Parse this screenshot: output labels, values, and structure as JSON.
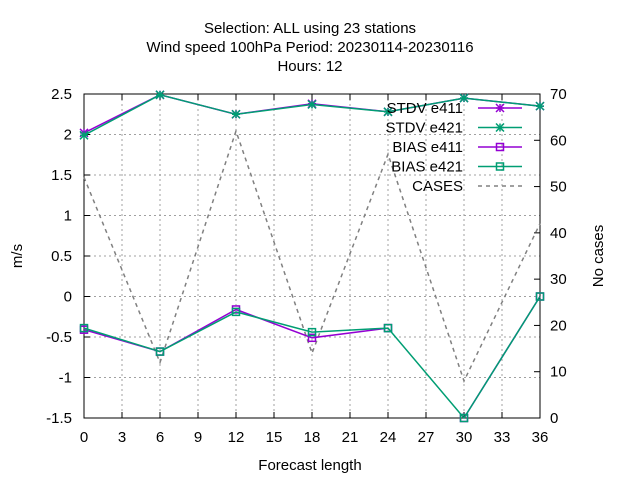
{
  "chart_data": {
    "type": "line",
    "title_lines": [
      "Selection: ALL using    23 stations",
      "Wind speed 100hPa   Period: 20230114-20230116",
      "Hours:  12"
    ],
    "xlabel": "Forecast length",
    "ylabel": "m/s",
    "y2label": "No cases",
    "xlim": [
      0,
      36
    ],
    "ylim": [
      -1.5,
      2.5
    ],
    "y2lim": [
      0,
      70
    ],
    "x_ticks": [
      "0",
      "3",
      "6",
      "9",
      "12",
      "15",
      "18",
      "21",
      "24",
      "27",
      "30",
      "33",
      "36"
    ],
    "y_ticks": [
      "2.5",
      "2",
      "1.5",
      "1",
      "0.5",
      "0",
      "-0.5",
      "-1",
      "-1.5"
    ],
    "y2_ticks": [
      "70",
      "60",
      "50",
      "40",
      "30",
      "20",
      "10",
      "0"
    ],
    "grid": true,
    "legend_position": "top-right",
    "series": [
      {
        "name": "STDV e411",
        "axis": "y1",
        "color": "#9400d3",
        "marker": "star",
        "dash": false,
        "points": [
          [
            0,
            2.02
          ],
          [
            6,
            2.49
          ],
          [
            12,
            2.25
          ],
          [
            18,
            2.38
          ],
          [
            24,
            2.28
          ],
          [
            30,
            2.45
          ],
          [
            36,
            2.35
          ]
        ]
      },
      {
        "name": "STDV e421",
        "axis": "y1",
        "color": "#009e73",
        "marker": "star",
        "dash": false,
        "points": [
          [
            0,
            1.99
          ],
          [
            6,
            2.49
          ],
          [
            12,
            2.25
          ],
          [
            18,
            2.37
          ],
          [
            24,
            2.28
          ],
          [
            30,
            2.45
          ],
          [
            36,
            2.35
          ]
        ]
      },
      {
        "name": "BIAS e411",
        "axis": "y1",
        "color": "#9400d3",
        "marker": "square",
        "dash": false,
        "points": [
          [
            0,
            -0.41
          ],
          [
            6,
            -0.68
          ],
          [
            12,
            -0.16
          ],
          [
            18,
            -0.51
          ],
          [
            24,
            -0.39
          ]
        ],
        "points2": [
          [
            30,
            -1.5
          ],
          [
            36,
            0.0
          ]
        ]
      },
      {
        "name": "BIAS e421",
        "axis": "y1",
        "color": "#009e73",
        "marker": "square",
        "dash": false,
        "points": [
          [
            0,
            -0.39
          ],
          [
            6,
            -0.68
          ],
          [
            12,
            -0.19
          ],
          [
            18,
            -0.44
          ],
          [
            24,
            -0.39
          ],
          [
            30,
            -1.5
          ],
          [
            36,
            0.0
          ]
        ]
      },
      {
        "name": "CASES",
        "axis": "y2",
        "color": "#808080",
        "marker": "none",
        "dash": true,
        "points": [
          [
            0,
            52
          ],
          [
            6,
            12
          ],
          [
            12,
            62
          ],
          [
            18,
            14
          ],
          [
            24,
            57
          ],
          [
            30,
            8
          ],
          [
            36,
            42
          ]
        ]
      }
    ]
  }
}
